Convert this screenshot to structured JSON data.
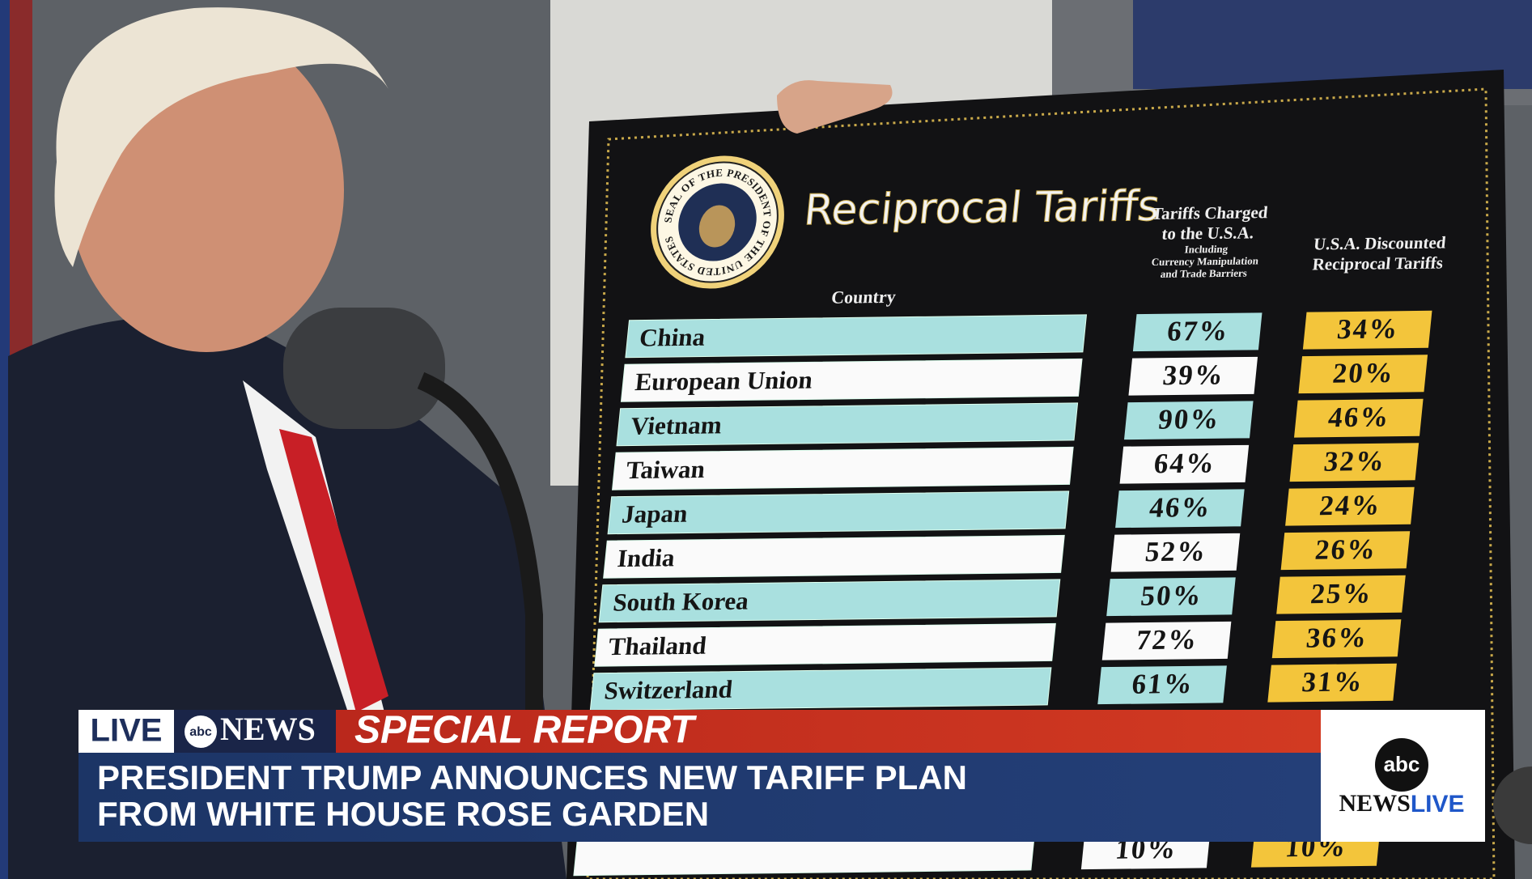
{
  "broadcast": {
    "live": "LIVE",
    "network_mark": "abc",
    "network": "NEWS",
    "banner": "SPECIAL REPORT",
    "headline": [
      "PRESIDENT TRUMP ANNOUNCES NEW TARIFF PLAN",
      "FROM WHITE HOUSE ROSE GARDEN"
    ],
    "corner_logo": {
      "mark": "abc",
      "news": "NEWS",
      "live": "LIVE"
    }
  },
  "board": {
    "seal_text": "SEAL OF THE PRESIDENT OF THE UNITED STATES",
    "title": "Reciprocal Tariffs",
    "columns": {
      "country": "Country",
      "charged": [
        "Tariffs Charged",
        "to the U.S.A.",
        "Including",
        "Currency Manipulation",
        "and Trade Barriers"
      ],
      "discounted": [
        "U.S.A. Discounted",
        "Reciprocal Tariffs"
      ]
    },
    "rows": [
      {
        "country": "China",
        "charged": "67%",
        "discounted": "34%"
      },
      {
        "country": "European Union",
        "charged": "39%",
        "discounted": "20%"
      },
      {
        "country": "Vietnam",
        "charged": "90%",
        "discounted": "46%"
      },
      {
        "country": "Taiwan",
        "charged": "64%",
        "discounted": "32%"
      },
      {
        "country": "Japan",
        "charged": "46%",
        "discounted": "24%"
      },
      {
        "country": "India",
        "charged": "52%",
        "discounted": "26%"
      },
      {
        "country": "South Korea",
        "charged": "50%",
        "discounted": "25%"
      },
      {
        "country": "Thailand",
        "charged": "72%",
        "discounted": "36%"
      },
      {
        "country": "Switzerland",
        "charged": "61%",
        "discounted": "31%"
      },
      {
        "country": null,
        "charged": "10%",
        "discounted": "10%"
      }
    ]
  }
}
